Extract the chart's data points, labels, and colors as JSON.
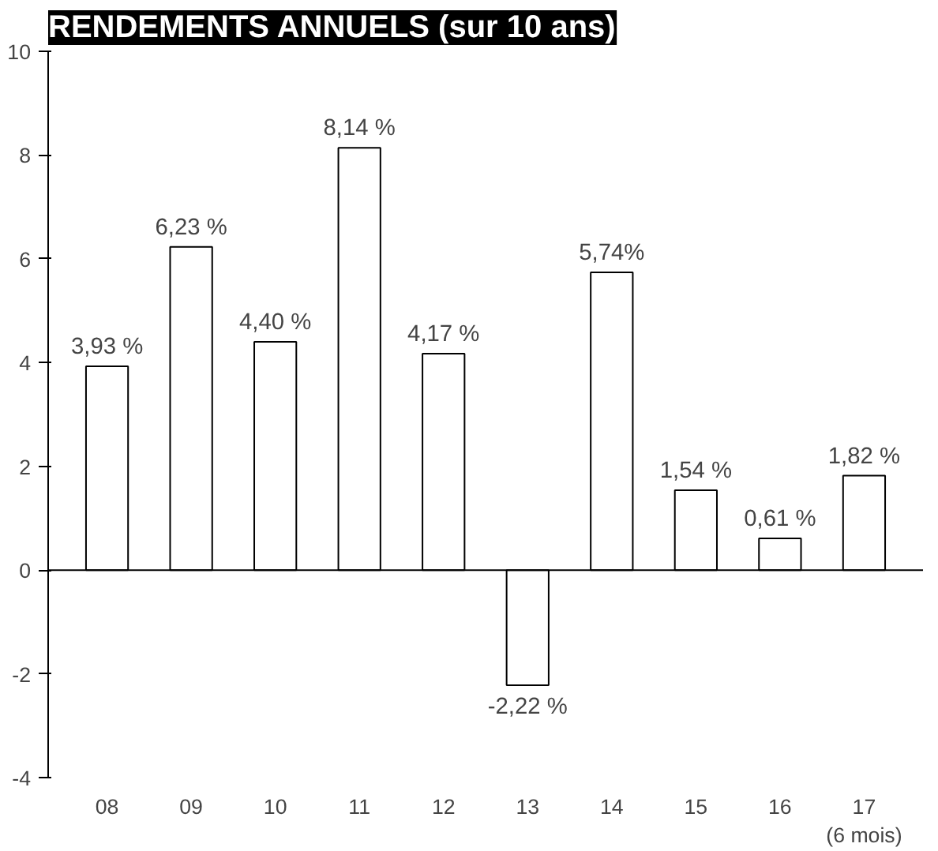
{
  "chart_data": {
    "type": "bar",
    "title": "RENDEMENTS ANNUELS (sur 10 ans)",
    "categories": [
      "08",
      "09",
      "10",
      "11",
      "12",
      "13",
      "14",
      "15",
      "16",
      "17\n(6 mois)"
    ],
    "values": [
      3.93,
      6.23,
      4.4,
      8.14,
      4.17,
      -2.22,
      5.74,
      1.54,
      0.61,
      1.82
    ],
    "value_labels": [
      "3,93 %",
      "6,23 %",
      "4,40 %",
      "8,14 %",
      "4,17 %",
      "-2,22 %",
      "5,74%",
      "1,54 %",
      "0,61 %",
      "1,82 %"
    ],
    "color": "#ffffff",
    "ylim": [
      -4,
      10
    ],
    "yticks": [
      -4,
      -2,
      0,
      2,
      4,
      6,
      8,
      10
    ],
    "ref_lines": [
      {
        "axis": "y",
        "value": 0,
        "color": "#000000"
      }
    ],
    "grid": false
  }
}
